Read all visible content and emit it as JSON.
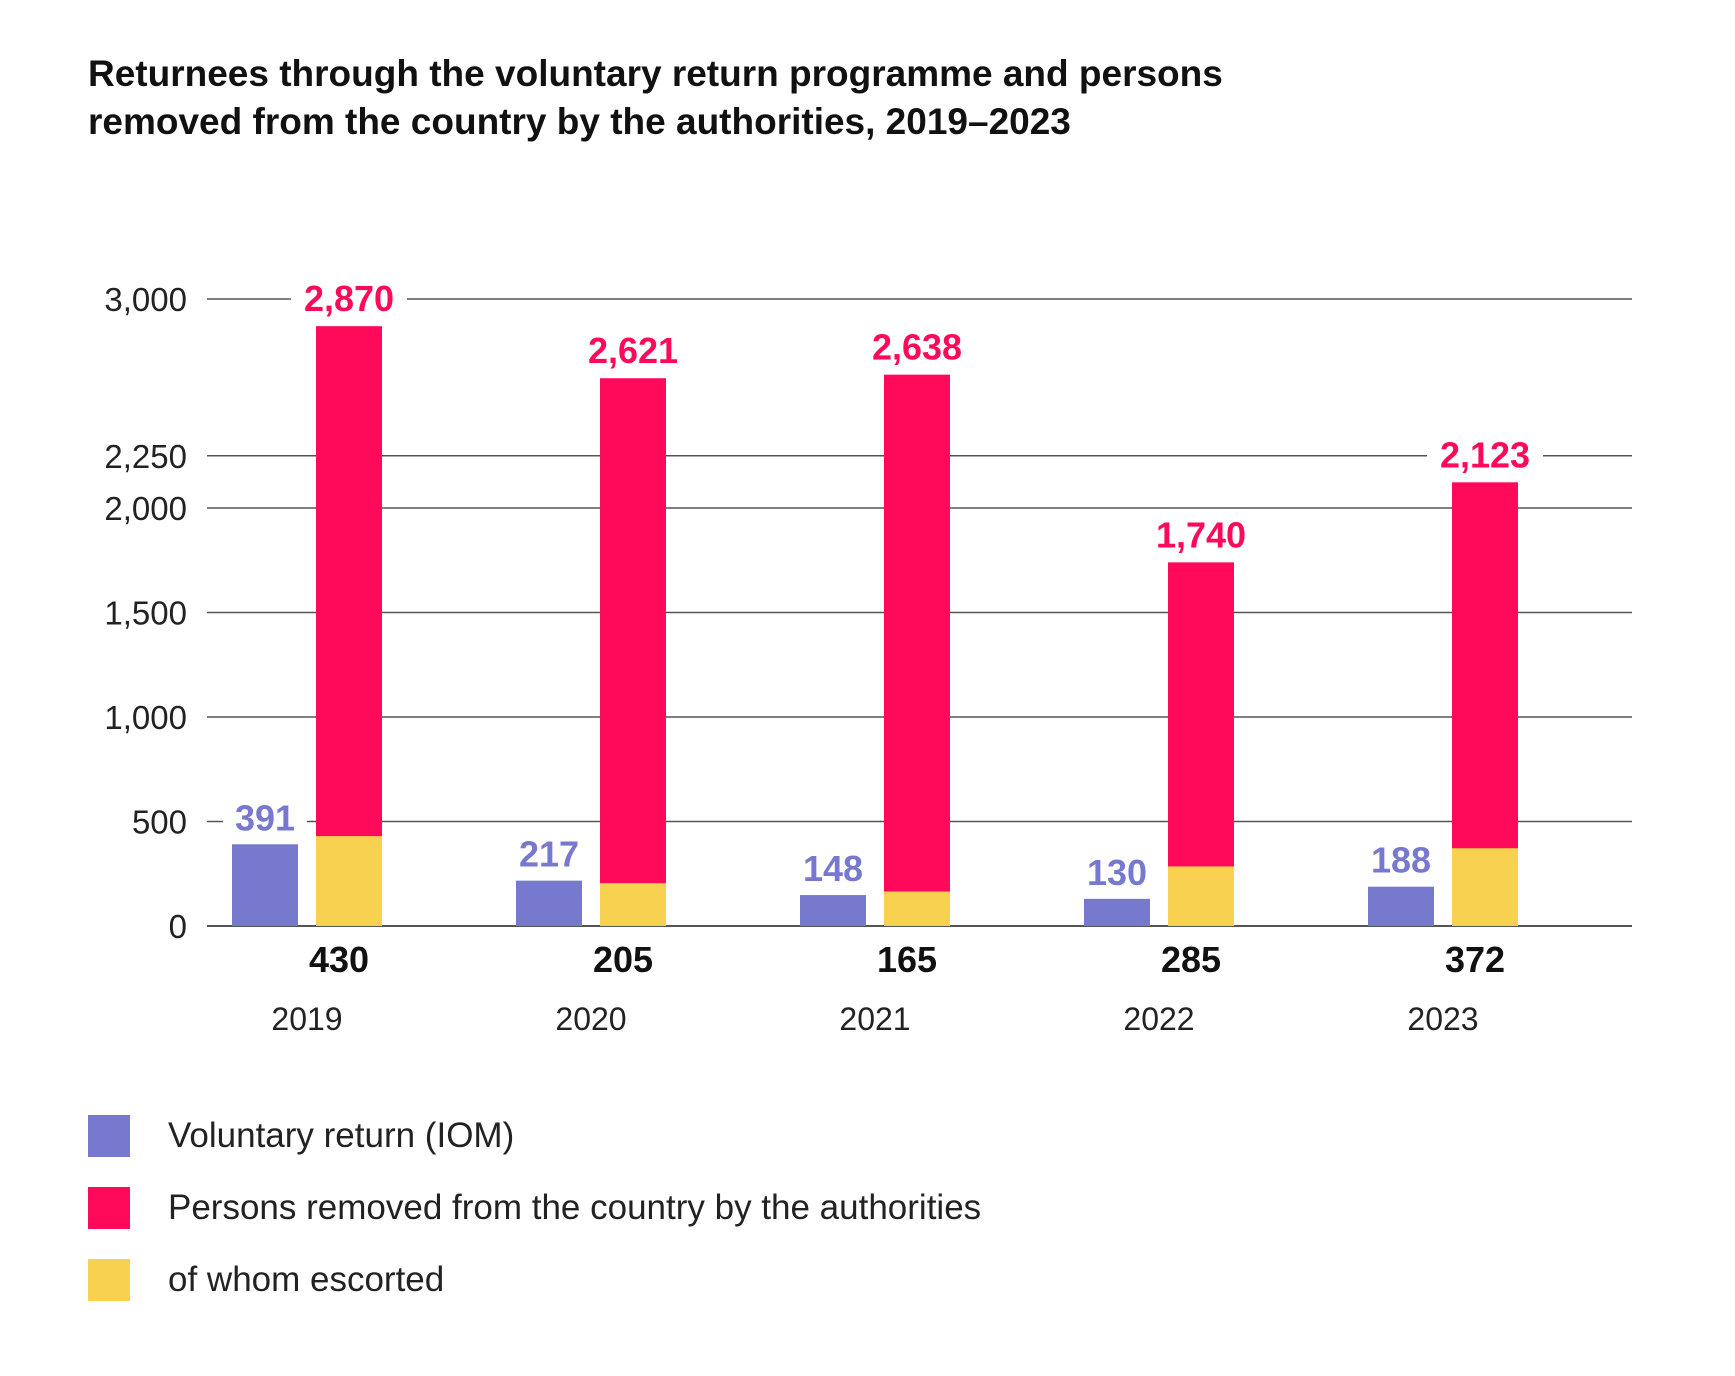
{
  "chart_data": {
    "type": "bar",
    "title_lines": [
      "Returnees through the voluntary return programme and persons",
      "removed from the country by the authorities, 2019–2023"
    ],
    "categories": [
      "2019",
      "2020",
      "2021",
      "2022",
      "2023"
    ],
    "y_ticks": [
      "0",
      "500",
      "1,000",
      "1,500",
      "2,000",
      "2,250",
      "3,000"
    ],
    "y_tick_values": [
      0,
      500,
      1000,
      1500,
      2000,
      2250,
      3000
    ],
    "series": [
      {
        "name": "Voluntary return (IOM)",
        "color": "#7779cf",
        "values": [
          391,
          217,
          148,
          130,
          188
        ],
        "value_labels": [
          "391",
          "217",
          "148",
          "130",
          "188"
        ]
      },
      {
        "name": "Persons removed from the country by the authorities",
        "color": "#ff0a5a",
        "values": [
          2870,
          2621,
          2638,
          1740,
          2123
        ],
        "value_labels": [
          "2,870",
          "2,621",
          "2,638",
          "1,740",
          "2,123"
        ]
      },
      {
        "name": "of whom escorted",
        "color": "#f7d14f",
        "values": [
          430,
          205,
          165,
          285,
          372
        ],
        "value_labels": [
          "430",
          "205",
          "165",
          "285",
          "372"
        ]
      }
    ],
    "stacking": "of whom escorted drawn inside the bottom of the removed bar",
    "grid": true,
    "legend_position": "bottom-left"
  },
  "colors": {
    "voluntary": "#7779cf",
    "removed": "#ff0a5a",
    "escorted": "#f7d14f",
    "gridline": "#555555",
    "text": "#111111"
  }
}
